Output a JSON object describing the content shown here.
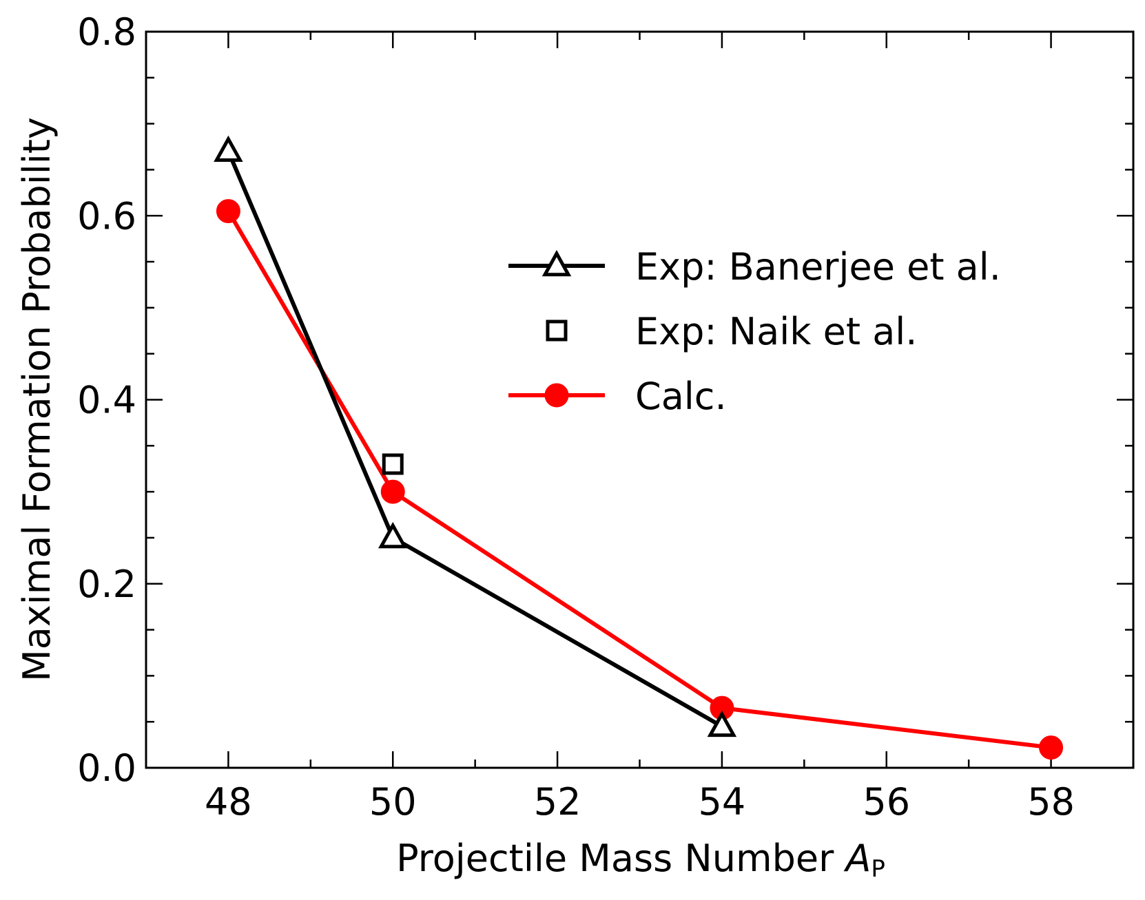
{
  "chart_data": {
    "type": "line",
    "title": "",
    "xlabel": "Projectile Mass Number ",
    "xlabel_var": "A",
    "xlabel_sub": "P",
    "ylabel": "Maximal Formation Probability",
    "xlim": [
      47.0,
      59.0
    ],
    "ylim": [
      0.0,
      0.8
    ],
    "x_ticks": [
      48,
      50,
      52,
      54,
      56,
      58
    ],
    "x_tick_labels": [
      "48",
      "50",
      "52",
      "54",
      "56",
      "58"
    ],
    "x_minor_ticks": [
      49,
      51,
      53,
      55,
      57
    ],
    "y_ticks": [
      0.0,
      0.2,
      0.4,
      0.6,
      0.8
    ],
    "y_tick_labels": [
      "0.0",
      "0.2",
      "0.4",
      "0.6",
      "0.8"
    ],
    "y_minor_ticks": [
      0.05,
      0.1,
      0.15,
      0.25,
      0.3,
      0.35,
      0.45,
      0.5,
      0.55,
      0.65,
      0.7,
      0.75
    ],
    "grid": false,
    "legend_position": "upper-right",
    "series": [
      {
        "name": "Exp: Banerjee et al.",
        "color": "#000000",
        "marker": "triangle",
        "line": true,
        "x": [
          48,
          50,
          54
        ],
        "y": [
          0.67,
          0.25,
          0.045
        ]
      },
      {
        "name": "Exp: Naik et al.",
        "color": "#000000",
        "marker": "square",
        "line": false,
        "x": [
          50
        ],
        "y": [
          0.33
        ]
      },
      {
        "name": "Calc.",
        "color": "#ff0000",
        "marker": "circle",
        "line": true,
        "x": [
          48,
          50,
          54,
          58
        ],
        "y": [
          0.605,
          0.3,
          0.065,
          0.022
        ]
      }
    ]
  }
}
